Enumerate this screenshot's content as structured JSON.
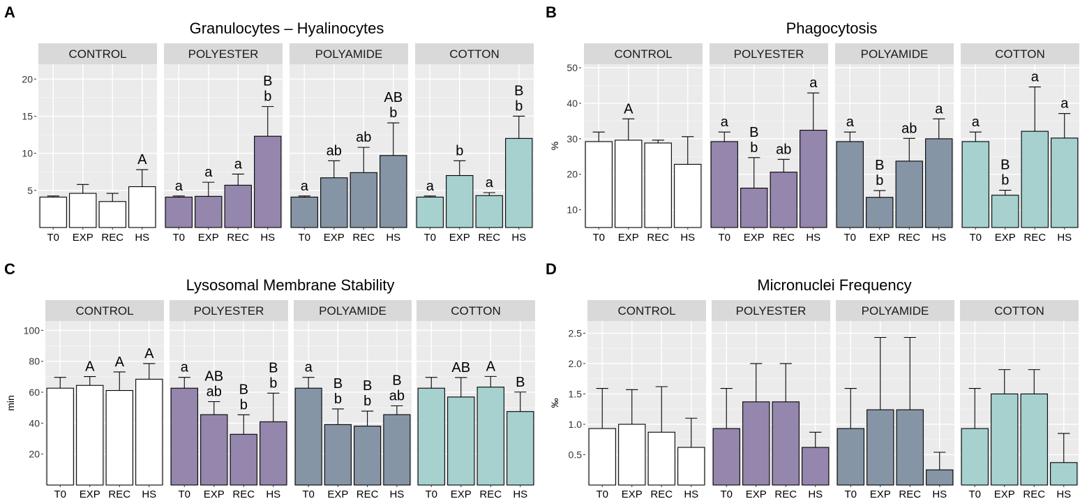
{
  "figure": {
    "panel_labels": [
      "A",
      "B",
      "C",
      "D"
    ],
    "groups": [
      "CONTROL",
      "POLYESTER",
      "POLYAMIDE",
      "COTTON"
    ],
    "fill_colors": {
      "CONTROL": "#ffffff",
      "POLYESTER": "#9586ad",
      "POLYAMIDE": "#8595a6",
      "COTTON": "#a6d1cf"
    },
    "panel_background": "#ebebeb",
    "strip_background": "#d9d9d9"
  },
  "chart_data": [
    {
      "panel": "A",
      "type": "bar",
      "title": "Granulocytes – Hyalinocytes",
      "ylabel": "",
      "ylim": [
        0,
        22
      ],
      "yticks": [
        5,
        10,
        15,
        20
      ],
      "categories": [
        "T0",
        "EXP",
        "REC",
        "HS"
      ],
      "series": [
        {
          "name": "CONTROL",
          "values": [
            4.1,
            4.6,
            3.5,
            5.5
          ],
          "errors": [
            0.15,
            1.2,
            1.1,
            2.3
          ],
          "labels": [
            "",
            "",
            "",
            "A"
          ]
        },
        {
          "name": "POLYESTER",
          "values": [
            4.1,
            4.2,
            5.7,
            12.3
          ],
          "errors": [
            0.15,
            1.9,
            1.5,
            4.0
          ],
          "labels": [
            "a",
            "a",
            "a",
            "B\nb"
          ]
        },
        {
          "name": "POLYAMIDE",
          "values": [
            4.1,
            6.7,
            7.4,
            9.7
          ],
          "errors": [
            0.15,
            2.3,
            3.4,
            4.4
          ],
          "labels": [
            "a",
            "ab",
            "ab",
            "AB\nb"
          ]
        },
        {
          "name": "COTTON",
          "values": [
            4.1,
            7.0,
            4.3,
            12.0
          ],
          "errors": [
            0.15,
            2.0,
            0.4,
            3.0
          ],
          "labels": [
            "a",
            "b",
            "a",
            "B\nb"
          ]
        }
      ]
    },
    {
      "panel": "B",
      "type": "bar",
      "title": "Phagocytosis",
      "ylabel": "%",
      "ylim": [
        5,
        51
      ],
      "yticks": [
        10,
        20,
        30,
        40,
        50
      ],
      "categories": [
        "T0",
        "EXP",
        "REC",
        "HS"
      ],
      "series": [
        {
          "name": "CONTROL",
          "values": [
            29.2,
            29.6,
            28.8,
            22.8
          ],
          "errors": [
            2.7,
            6.0,
            0.8,
            7.8
          ],
          "labels": [
            "",
            "A",
            "",
            ""
          ]
        },
        {
          "name": "POLYESTER",
          "values": [
            29.2,
            16.1,
            20.6,
            32.4
          ],
          "errors": [
            2.7,
            8.6,
            3.6,
            10.5
          ],
          "labels": [
            "a",
            "B\nb",
            "ab",
            "a"
          ]
        },
        {
          "name": "POLYAMIDE",
          "values": [
            29.2,
            13.5,
            23.7,
            30.0
          ],
          "errors": [
            2.7,
            1.9,
            6.4,
            5.6
          ],
          "labels": [
            "a",
            "B\nb",
            "ab",
            "a"
          ]
        },
        {
          "name": "COTTON",
          "values": [
            29.2,
            14.1,
            32.1,
            30.2
          ],
          "errors": [
            2.7,
            1.4,
            12.5,
            6.9
          ],
          "labels": [
            "a",
            "B\nb",
            "a",
            "a"
          ]
        }
      ]
    },
    {
      "panel": "C",
      "type": "bar",
      "title": "Lysosomal Membrane Stability",
      "ylabel": "min",
      "ylim": [
        0,
        106
      ],
      "yticks": [
        20,
        40,
        60,
        80,
        100
      ],
      "categories": [
        "T0",
        "EXP",
        "REC",
        "HS"
      ],
      "series": [
        {
          "name": "CONTROL",
          "values": [
            62.6,
            64.4,
            61.1,
            68.4
          ],
          "errors": [
            7.0,
            5.7,
            12.0,
            10.1
          ],
          "labels": [
            "",
            "A",
            "A",
            "A"
          ]
        },
        {
          "name": "POLYESTER",
          "values": [
            62.6,
            45.5,
            32.8,
            40.9
          ],
          "errors": [
            7.0,
            8.4,
            12.6,
            18.5
          ],
          "labels": [
            "a",
            "AB\nab",
            "B\nb",
            "B\nb"
          ]
        },
        {
          "name": "POLYAMIDE",
          "values": [
            62.6,
            39.1,
            38.1,
            45.5
          ],
          "errors": [
            7.0,
            10.1,
            9.7,
            5.7
          ],
          "labels": [
            "a",
            "B\nb",
            "B\nb",
            "B\nab"
          ]
        },
        {
          "name": "COTTON",
          "values": [
            62.6,
            56.9,
            63.3,
            47.5
          ],
          "errors": [
            7.0,
            12.6,
            6.9,
            12.6
          ],
          "labels": [
            "",
            "AB",
            "A",
            "B"
          ]
        }
      ]
    },
    {
      "panel": "D",
      "type": "bar",
      "title": "Micronuclei Frequency",
      "ylabel": "‰",
      "ylim": [
        0,
        2.7
      ],
      "yticks": [
        "0.5",
        "1.0",
        "1.5",
        "2.0",
        "2.5"
      ],
      "categories": [
        "T0",
        "EXP",
        "REC",
        "HS"
      ],
      "series": [
        {
          "name": "CONTROL",
          "values": [
            0.93,
            1.0,
            0.87,
            0.62
          ],
          "errors": [
            0.66,
            0.57,
            0.75,
            0.48
          ],
          "labels": [
            "",
            "",
            "",
            ""
          ]
        },
        {
          "name": "POLYESTER",
          "values": [
            0.93,
            1.37,
            1.37,
            0.62
          ],
          "errors": [
            0.66,
            0.63,
            0.63,
            0.25
          ],
          "labels": [
            "",
            "",
            "",
            ""
          ]
        },
        {
          "name": "POLYAMIDE",
          "values": [
            0.93,
            1.24,
            1.24,
            0.25
          ],
          "errors": [
            0.66,
            1.19,
            1.19,
            0.29
          ],
          "labels": [
            "",
            "",
            "",
            ""
          ]
        },
        {
          "name": "COTTON",
          "values": [
            0.93,
            1.5,
            1.5,
            0.37
          ],
          "errors": [
            0.66,
            0.4,
            0.4,
            0.48
          ],
          "labels": [
            "",
            "",
            "",
            ""
          ]
        }
      ]
    }
  ]
}
